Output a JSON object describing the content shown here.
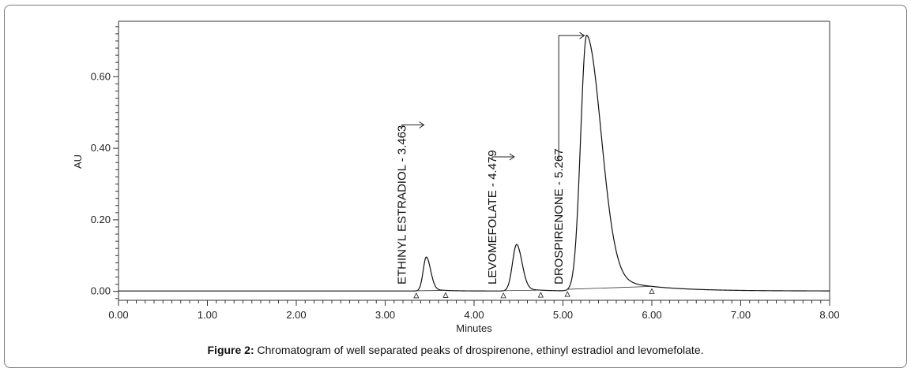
{
  "chart_data": {
    "type": "line",
    "xlabel": "Minutes",
    "ylabel": "AU",
    "xlim": [
      0,
      8
    ],
    "ylim": [
      -0.025,
      0.755
    ],
    "x_ticks": [
      "0.00",
      "1.00",
      "2.00",
      "3.00",
      "4.00",
      "5.00",
      "6.00",
      "7.00",
      "8.00"
    ],
    "y_ticks": [
      "0.00",
      "0.20",
      "0.40",
      "0.60"
    ],
    "peaks": [
      {
        "label": "ETHINYL ESTRADIOL - 3.463",
        "retention_time": 3.463,
        "height": 0.095,
        "start": 3.35,
        "end": 3.68
      },
      {
        "label": "LEVOMEFOLATE - 4.479",
        "retention_time": 4.479,
        "height": 0.13,
        "start": 4.33,
        "end": 4.75
      },
      {
        "label": "DROSPIRENONE - 5.267",
        "retention_time": 5.267,
        "height": 0.715,
        "start": 5.05,
        "end": 6.0
      }
    ],
    "grid": false,
    "legend": "none"
  },
  "caption": {
    "prefix": "Figure 2:",
    "text": " Chromatogram of well separated peaks of drospirenone, ethinyl estradiol and levomefolate."
  }
}
